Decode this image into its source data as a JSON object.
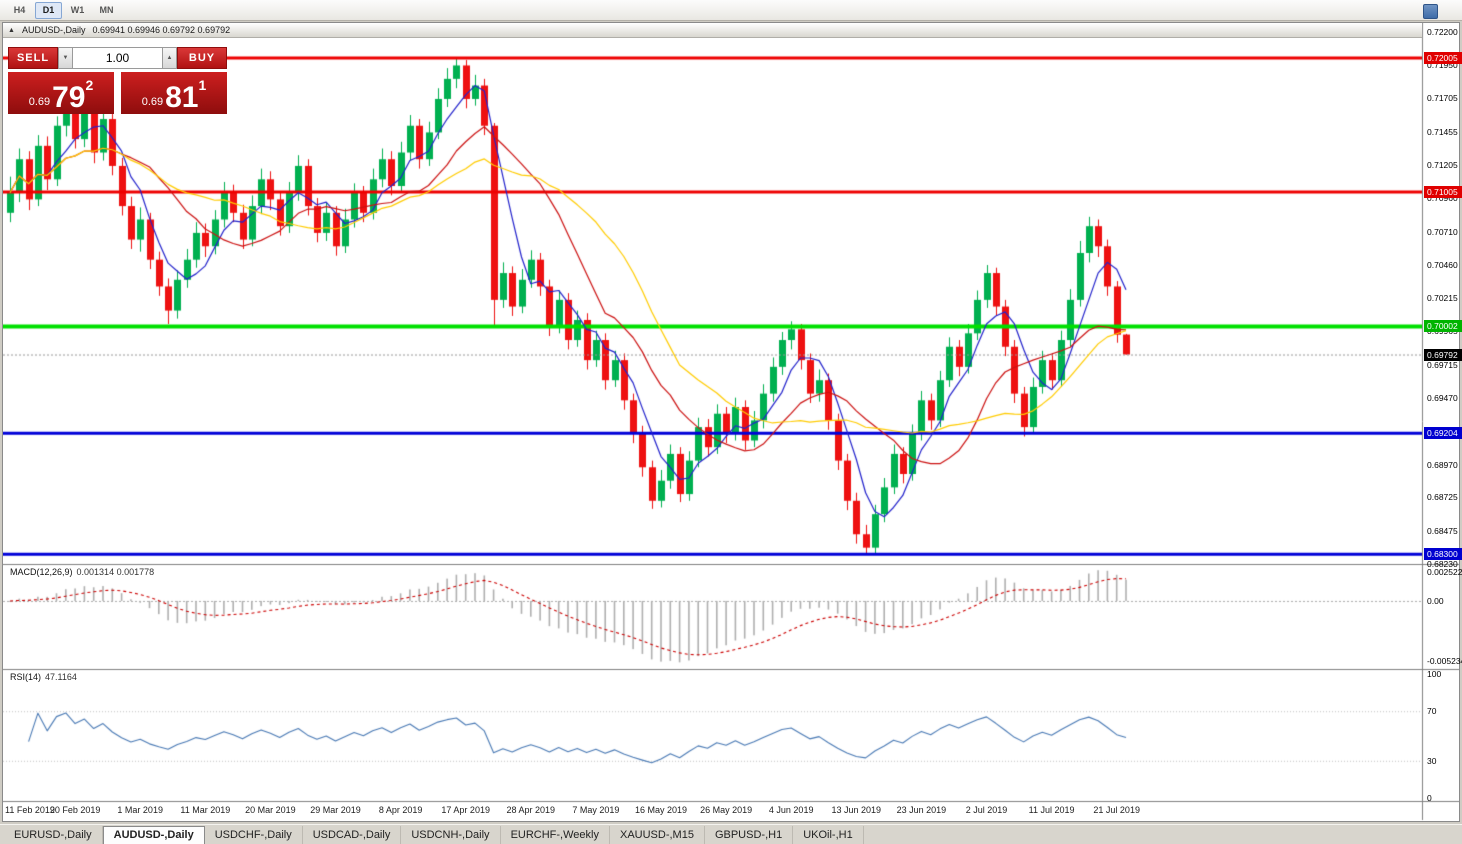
{
  "toolbar": {
    "timeframes": [
      {
        "label": "H4",
        "active": false
      },
      {
        "label": "D1",
        "active": true
      },
      {
        "label": "W1",
        "active": false
      },
      {
        "label": "MN",
        "active": false
      }
    ]
  },
  "window": {
    "collapse_icon": "▲",
    "title_symbol": "AUDUSD-,Daily",
    "ohlc": "0.69941 0.69946 0.69792 0.69792"
  },
  "trade_panel": {
    "sell_label": "SELL",
    "buy_label": "BUY",
    "volume": "1.00",
    "step_down_icon": "▼",
    "step_up_icon": "▲",
    "sell_price": {
      "prefix": "0.69",
      "pips": "79",
      "frac": "2"
    },
    "buy_price": {
      "prefix": "0.69",
      "pips": "81",
      "frac": "1"
    }
  },
  "chart_data": {
    "type": "candlestick",
    "symbol": "AUDUSD-",
    "period": "Daily",
    "colors": {
      "up": "#00b050",
      "down": "#ee1111",
      "background": "#ffffff"
    },
    "price_axis": [
      {
        "text": "0.72200",
        "value": 0.722
      },
      {
        "text": "0.71950",
        "value": 0.7195
      },
      {
        "text": "0.71705",
        "value": 0.71705
      },
      {
        "text": "0.71455",
        "value": 0.71455
      },
      {
        "text": "0.71205",
        "value": 0.71205
      },
      {
        "text": "0.70960",
        "value": 0.7096
      },
      {
        "text": "0.70710",
        "value": 0.7071
      },
      {
        "text": "0.70460",
        "value": 0.7046
      },
      {
        "text": "0.70215",
        "value": 0.70215
      },
      {
        "text": "0.69965",
        "value": 0.69965
      },
      {
        "text": "0.69715",
        "value": 0.69715
      },
      {
        "text": "0.69470",
        "value": 0.6947
      },
      {
        "text": "0.68970",
        "value": 0.6897
      },
      {
        "text": "0.68725",
        "value": 0.68725
      },
      {
        "text": "0.68475",
        "value": 0.68475
      },
      {
        "text": "0.68230",
        "value": 0.6823
      }
    ],
    "hlines": [
      {
        "value": 0.72005,
        "label": "0.72005",
        "color": "#ee0000",
        "width": 3,
        "badge": "#e00000"
      },
      {
        "value": 0.71005,
        "label": "0.71005",
        "color": "#ee0000",
        "width": 3,
        "badge": "#e00000"
      },
      {
        "value": 0.70002,
        "label": "0.70002",
        "color": "#00e000",
        "width": 4,
        "badge": "#00b400"
      },
      {
        "value": 0.69204,
        "label": "0.69204",
        "color": "#0000d8",
        "width": 3,
        "badge": "#0000d0"
      },
      {
        "value": 0.683,
        "label": "0.68300",
        "color": "#0000d8",
        "width": 3,
        "badge": "#0000d0"
      }
    ],
    "current_price": {
      "value": 0.69792,
      "label": "0.69792",
      "badge": "#000000"
    },
    "x_axis": [
      {
        "text": "11 Feb 2019",
        "index": 0
      },
      {
        "text": "20 Feb 2019",
        "index": 7
      },
      {
        "text": "1 Mar 2019",
        "index": 14
      },
      {
        "text": "11 Mar 2019",
        "index": 21
      },
      {
        "text": "20 Mar 2019",
        "index": 28
      },
      {
        "text": "29 Mar 2019",
        "index": 35
      },
      {
        "text": "8 Apr 2019",
        "index": 42
      },
      {
        "text": "17 Apr 2019",
        "index": 49
      },
      {
        "text": "28 Apr 2019",
        "index": 56
      },
      {
        "text": "7 May 2019",
        "index": 63
      },
      {
        "text": "16 May 2019",
        "index": 70
      },
      {
        "text": "26 May 2019",
        "index": 77
      },
      {
        "text": "4 Jun 2019",
        "index": 84
      },
      {
        "text": "13 Jun 2019",
        "index": 91
      },
      {
        "text": "23 Jun 2019",
        "index": 98
      },
      {
        "text": "2 Jul 2019",
        "index": 105
      },
      {
        "text": "11 Jul 2019",
        "index": 112
      },
      {
        "text": "21 Jul 2019",
        "index": 119
      }
    ],
    "moving_averages": [
      {
        "period": 5,
        "color": "#2222cc"
      },
      {
        "period": 13,
        "color": "#cc1111"
      },
      {
        "period": 21,
        "color": "#ffcc00"
      }
    ],
    "macd": {
      "title": "MACD(12,26,9)",
      "values": "0.001314 0.001778",
      "fast": 12,
      "slow": 26,
      "signal": 9,
      "hist_color": "#b0b0b0",
      "signal_color": "#cc0000",
      "range_max": 0.00322,
      "range_min": -0.00593,
      "scale_labels": [
        {
          "text": "0.002522",
          "value": 0.002522
        },
        {
          "text": "0.00",
          "value": 0
        },
        {
          "text": "-0.005234",
          "value": -0.005234
        }
      ]
    },
    "rsi": {
      "title": "RSI(14)",
      "value": "47.1164",
      "period": 14,
      "color": "#4a7ab5",
      "levels": [
        70,
        30
      ],
      "scale_labels": [
        {
          "text": "100",
          "value": 100
        },
        {
          "text": "70",
          "value": 70
        },
        {
          "text": "30",
          "value": 30
        },
        {
          "text": "0",
          "value": 0
        }
      ]
    },
    "candles_ohlc": [
      [
        0.7085,
        0.7112,
        0.7078,
        0.71
      ],
      [
        0.71,
        0.7133,
        0.7093,
        0.7125
      ],
      [
        0.7125,
        0.7131,
        0.7087,
        0.7095
      ],
      [
        0.7095,
        0.7143,
        0.709,
        0.7135
      ],
      [
        0.7135,
        0.7142,
        0.7102,
        0.711
      ],
      [
        0.711,
        0.7157,
        0.7105,
        0.715
      ],
      [
        0.715,
        0.7174,
        0.7142,
        0.7165
      ],
      [
        0.7165,
        0.7172,
        0.7133,
        0.714
      ],
      [
        0.714,
        0.7169,
        0.7134,
        0.716
      ],
      [
        0.716,
        0.7166,
        0.7122,
        0.713
      ],
      [
        0.713,
        0.7164,
        0.7124,
        0.7155
      ],
      [
        0.7155,
        0.716,
        0.7113,
        0.712
      ],
      [
        0.712,
        0.7126,
        0.7083,
        0.709
      ],
      [
        0.709,
        0.7097,
        0.7058,
        0.7065
      ],
      [
        0.7065,
        0.7089,
        0.7056,
        0.708
      ],
      [
        0.708,
        0.7085,
        0.7043,
        0.705
      ],
      [
        0.705,
        0.7056,
        0.7023,
        0.703
      ],
      [
        0.703,
        0.7036,
        0.7002,
        0.7012
      ],
      [
        0.7012,
        0.7042,
        0.7006,
        0.7035
      ],
      [
        0.7035,
        0.7058,
        0.7029,
        0.705
      ],
      [
        0.705,
        0.7078,
        0.7044,
        0.707
      ],
      [
        0.707,
        0.7077,
        0.7052,
        0.706
      ],
      [
        0.706,
        0.7087,
        0.7054,
        0.708
      ],
      [
        0.708,
        0.7108,
        0.7074,
        0.71
      ],
      [
        0.71,
        0.7106,
        0.7078,
        0.7085
      ],
      [
        0.7085,
        0.7091,
        0.7058,
        0.7065
      ],
      [
        0.7065,
        0.7098,
        0.706,
        0.709
      ],
      [
        0.709,
        0.7118,
        0.7084,
        0.711
      ],
      [
        0.711,
        0.7116,
        0.7087,
        0.7095
      ],
      [
        0.7095,
        0.7101,
        0.7068,
        0.7075
      ],
      [
        0.7075,
        0.7108,
        0.707,
        0.71
      ],
      [
        0.71,
        0.7128,
        0.7094,
        0.712
      ],
      [
        0.712,
        0.7125,
        0.7083,
        0.709
      ],
      [
        0.709,
        0.7096,
        0.7063,
        0.707
      ],
      [
        0.707,
        0.7093,
        0.7064,
        0.7085
      ],
      [
        0.7085,
        0.709,
        0.7053,
        0.706
      ],
      [
        0.706,
        0.7088,
        0.7055,
        0.708
      ],
      [
        0.708,
        0.7107,
        0.7074,
        0.71
      ],
      [
        0.71,
        0.7105,
        0.7078,
        0.7085
      ],
      [
        0.7085,
        0.7118,
        0.708,
        0.711
      ],
      [
        0.711,
        0.7133,
        0.7104,
        0.7125
      ],
      [
        0.7125,
        0.7131,
        0.7098,
        0.7105
      ],
      [
        0.7105,
        0.7138,
        0.71,
        0.713
      ],
      [
        0.713,
        0.7158,
        0.7124,
        0.715
      ],
      [
        0.715,
        0.7155,
        0.7118,
        0.7125
      ],
      [
        0.7125,
        0.7153,
        0.712,
        0.7145
      ],
      [
        0.7145,
        0.7178,
        0.714,
        0.717
      ],
      [
        0.717,
        0.7193,
        0.7164,
        0.7185
      ],
      [
        0.7185,
        0.7201,
        0.7178,
        0.7195
      ],
      [
        0.7195,
        0.7199,
        0.7163,
        0.717
      ],
      [
        0.717,
        0.7188,
        0.7165,
        0.718
      ],
      [
        0.718,
        0.7185,
        0.7143,
        0.715
      ],
      [
        0.715,
        0.7152,
        0.7,
        0.702
      ],
      [
        0.702,
        0.7048,
        0.7014,
        0.704
      ],
      [
        0.704,
        0.7045,
        0.7008,
        0.7015
      ],
      [
        0.7015,
        0.7043,
        0.701,
        0.7035
      ],
      [
        0.7035,
        0.7057,
        0.7029,
        0.705
      ],
      [
        0.705,
        0.7055,
        0.7023,
        0.703
      ],
      [
        0.703,
        0.7035,
        0.6993,
        0.7
      ],
      [
        0.7,
        0.7027,
        0.6995,
        0.702
      ],
      [
        0.702,
        0.7025,
        0.6983,
        0.699
      ],
      [
        0.699,
        0.7012,
        0.6985,
        0.7005
      ],
      [
        0.7005,
        0.701,
        0.6968,
        0.6975
      ],
      [
        0.6975,
        0.6997,
        0.697,
        0.699
      ],
      [
        0.699,
        0.6995,
        0.6953,
        0.696
      ],
      [
        0.696,
        0.6982,
        0.6955,
        0.6975
      ],
      [
        0.6975,
        0.698,
        0.6938,
        0.6945
      ],
      [
        0.6945,
        0.695,
        0.6913,
        0.692
      ],
      [
        0.692,
        0.6926,
        0.6888,
        0.6895
      ],
      [
        0.6895,
        0.69,
        0.6864,
        0.687
      ],
      [
        0.687,
        0.6893,
        0.6865,
        0.6885
      ],
      [
        0.6885,
        0.6912,
        0.6879,
        0.6905
      ],
      [
        0.6905,
        0.691,
        0.6869,
        0.6875
      ],
      [
        0.6875,
        0.6907,
        0.687,
        0.69
      ],
      [
        0.69,
        0.6932,
        0.6895,
        0.6925
      ],
      [
        0.6925,
        0.6931,
        0.6903,
        0.691
      ],
      [
        0.691,
        0.6942,
        0.6905,
        0.6935
      ],
      [
        0.6935,
        0.694,
        0.6913,
        0.692
      ],
      [
        0.692,
        0.6947,
        0.6915,
        0.694
      ],
      [
        0.694,
        0.6945,
        0.6908,
        0.6915
      ],
      [
        0.6915,
        0.6937,
        0.691,
        0.693
      ],
      [
        0.693,
        0.6957,
        0.6924,
        0.695
      ],
      [
        0.695,
        0.6977,
        0.6944,
        0.697
      ],
      [
        0.697,
        0.6996,
        0.6964,
        0.699
      ],
      [
        0.699,
        0.7004,
        0.6983,
        0.6998
      ],
      [
        0.6998,
        0.7002,
        0.6968,
        0.6975
      ],
      [
        0.6975,
        0.698,
        0.6943,
        0.695
      ],
      [
        0.695,
        0.6968,
        0.6944,
        0.696
      ],
      [
        0.696,
        0.6965,
        0.6923,
        0.693
      ],
      [
        0.693,
        0.6935,
        0.6893,
        0.69
      ],
      [
        0.69,
        0.6905,
        0.6863,
        0.687
      ],
      [
        0.687,
        0.6876,
        0.6838,
        0.6845
      ],
      [
        0.6845,
        0.6852,
        0.68295,
        0.6835
      ],
      [
        0.6835,
        0.6867,
        0.683,
        0.686
      ],
      [
        0.686,
        0.6887,
        0.6854,
        0.688
      ],
      [
        0.688,
        0.6912,
        0.6875,
        0.6905
      ],
      [
        0.6905,
        0.691,
        0.6883,
        0.689
      ],
      [
        0.689,
        0.6927,
        0.6885,
        0.692
      ],
      [
        0.692,
        0.6952,
        0.6915,
        0.6945
      ],
      [
        0.6945,
        0.695,
        0.6923,
        0.693
      ],
      [
        0.693,
        0.6967,
        0.6925,
        0.696
      ],
      [
        0.696,
        0.6992,
        0.6955,
        0.6985
      ],
      [
        0.6985,
        0.699,
        0.6963,
        0.697
      ],
      [
        0.697,
        0.7002,
        0.6965,
        0.6995
      ],
      [
        0.6995,
        0.7027,
        0.699,
        0.702
      ],
      [
        0.702,
        0.7046,
        0.7014,
        0.704
      ],
      [
        0.704,
        0.7044,
        0.7008,
        0.7015
      ],
      [
        0.7015,
        0.702,
        0.6978,
        0.6985
      ],
      [
        0.6985,
        0.699,
        0.6943,
        0.695
      ],
      [
        0.695,
        0.6955,
        0.6918,
        0.6925
      ],
      [
        0.6925,
        0.6962,
        0.692,
        0.6955
      ],
      [
        0.6955,
        0.6982,
        0.695,
        0.6975
      ],
      [
        0.6975,
        0.698,
        0.6953,
        0.696
      ],
      [
        0.696,
        0.6997,
        0.6955,
        0.699
      ],
      [
        0.699,
        0.7028,
        0.6985,
        0.702
      ],
      [
        0.702,
        0.7064,
        0.7015,
        0.7055
      ],
      [
        0.7055,
        0.7082,
        0.7048,
        0.7075
      ],
      [
        0.7075,
        0.708,
        0.7052,
        0.706
      ],
      [
        0.706,
        0.7065,
        0.7023,
        0.703
      ],
      [
        0.703,
        0.7034,
        0.6988,
        0.6994
      ],
      [
        0.69941,
        0.69946,
        0.69792,
        0.69792
      ]
    ]
  },
  "tabs": [
    {
      "label": "EURUSD-,Daily",
      "active": false
    },
    {
      "label": "AUDUSD-,Daily",
      "active": true
    },
    {
      "label": "USDCHF-,Daily",
      "active": false
    },
    {
      "label": "USDCAD-,Daily",
      "active": false
    },
    {
      "label": "USDCNH-,Daily",
      "active": false
    },
    {
      "label": "EURCHF-,Weekly",
      "active": false
    },
    {
      "label": "XAUUSD-,M15",
      "active": false
    },
    {
      "label": "GBPUSD-,H1",
      "active": false
    },
    {
      "label": "UKOil-,H1",
      "active": false
    }
  ]
}
